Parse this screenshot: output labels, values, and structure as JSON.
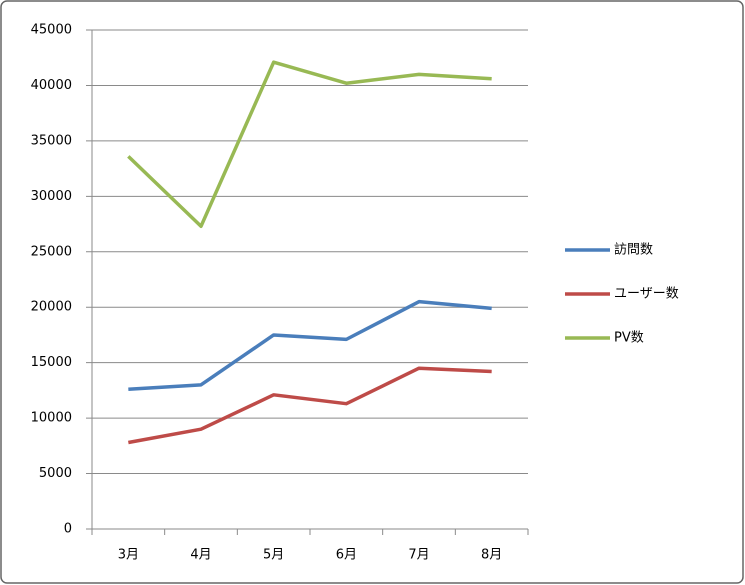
{
  "chart_data": {
    "type": "line",
    "categories": [
      "3月",
      "4月",
      "5月",
      "6月",
      "7月",
      "8月"
    ],
    "series": [
      {
        "name": "訪問数",
        "color": "#4a7ebb",
        "values": [
          12600,
          13000,
          17500,
          17100,
          20500,
          19900
        ]
      },
      {
        "name": "ユーザー数",
        "color": "#be4b48",
        "values": [
          7800,
          9000,
          12100,
          11300,
          14500,
          14200
        ]
      },
      {
        "name": "PV数",
        "color": "#98b954",
        "values": [
          33600,
          27300,
          42100,
          40200,
          41000,
          40600
        ]
      }
    ],
    "ylim": [
      0,
      45000
    ],
    "yticks": [
      0,
      5000,
      10000,
      15000,
      20000,
      25000,
      30000,
      35000,
      40000,
      45000
    ],
    "grid": true,
    "legend": "right"
  }
}
